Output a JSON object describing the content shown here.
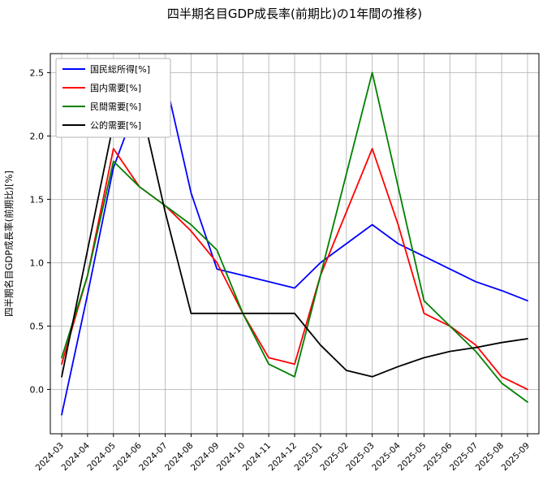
{
  "chart_data": {
    "type": "line",
    "title": "四半期名目GDP成長率(前期比)の1年間の推移)",
    "xlabel": "",
    "ylabel": "四半期名目GDP成長率(前期比)[%]",
    "grid": true,
    "legend_position": "upper-left",
    "ylim": [
      -0.35,
      2.65
    ],
    "yticks": [
      0.0,
      0.5,
      1.0,
      1.5,
      2.0,
      2.5
    ],
    "categories": [
      "2024-03",
      "2024-04",
      "2024-05",
      "2024-06",
      "2024-07",
      "2024-08",
      "2024-09",
      "2024-10",
      "2024-11",
      "2024-12",
      "2025-01",
      "2025-02",
      "2025-03",
      "2025-04",
      "2025-05",
      "2025-06",
      "2025-07",
      "2025-08",
      "2025-09"
    ],
    "series": [
      {
        "name": "国民総所得[%]",
        "color": "#0000ff",
        "values": [
          -0.2,
          0.75,
          1.75,
          2.3,
          2.45,
          1.55,
          0.95,
          0.9,
          0.85,
          0.8,
          1.0,
          1.15,
          1.3,
          1.15,
          1.05,
          0.95,
          0.85,
          0.78,
          0.7
        ]
      },
      {
        "name": "国内需要[%]",
        "color": "#ff0000",
        "values": [
          0.2,
          0.9,
          1.9,
          1.6,
          1.45,
          1.25,
          1.0,
          0.6,
          0.25,
          0.2,
          0.9,
          1.4,
          1.9,
          1.3,
          0.6,
          0.5,
          0.35,
          0.1,
          0.0
        ]
      },
      {
        "name": "民間需要[%]",
        "color": "#008000",
        "values": [
          0.25,
          0.9,
          1.8,
          1.6,
          1.45,
          1.3,
          1.1,
          0.6,
          0.2,
          0.1,
          0.9,
          1.7,
          2.5,
          1.6,
          0.7,
          0.5,
          0.3,
          0.05,
          -0.1
        ]
      },
      {
        "name": "公的需要[%]",
        "color": "#000000",
        "values": [
          0.1,
          1.1,
          2.1,
          2.3,
          1.4,
          0.6,
          0.6,
          0.6,
          0.6,
          0.6,
          0.35,
          0.15,
          0.1,
          0.18,
          0.25,
          0.3,
          0.33,
          0.37,
          0.4
        ]
      }
    ]
  }
}
